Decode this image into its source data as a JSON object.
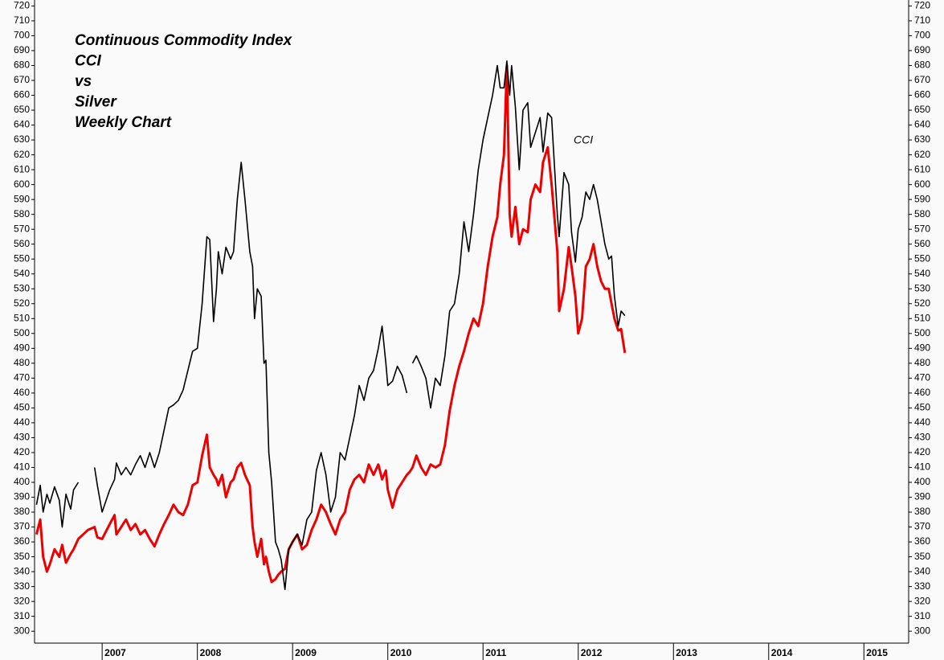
{
  "chart_data": {
    "type": "line",
    "title": [
      "Continuous Commodity Index",
      "CCI",
      "vs",
      "Silver",
      "Weekly Chart"
    ],
    "xlim": [
      2006.29,
      2015.47
    ],
    "xticks": [
      2007,
      2008,
      2009,
      2010,
      2011,
      2012,
      2013,
      2014,
      2015
    ],
    "ylim": [
      292,
      724
    ],
    "yticks": [
      300,
      310,
      320,
      330,
      340,
      350,
      360,
      370,
      380,
      390,
      400,
      410,
      420,
      430,
      440,
      450,
      460,
      470,
      480,
      490,
      500,
      510,
      520,
      530,
      540,
      550,
      560,
      570,
      580,
      590,
      600,
      610,
      620,
      630,
      640,
      650,
      660,
      670,
      680,
      690,
      700,
      710,
      720
    ],
    "x": [
      2006.31,
      2006.35,
      2006.38,
      2006.42,
      2006.45,
      2006.5,
      2006.55,
      2006.58,
      2006.62,
      2006.67,
      2006.7,
      2006.75,
      2006.85,
      2006.92,
      2006.95,
      2007.0,
      2007.08,
      2007.13,
      2007.15,
      2007.2,
      2007.25,
      2007.3,
      2007.35,
      2007.4,
      2007.45,
      2007.5,
      2007.55,
      2007.6,
      2007.65,
      2007.7,
      2007.75,
      2007.8,
      2007.85,
      2007.9,
      2007.95,
      2008.0,
      2008.05,
      2008.1,
      2008.13,
      2008.17,
      2008.2,
      2008.22,
      2008.26,
      2008.3,
      2008.35,
      2008.38,
      2008.42,
      2008.46,
      2008.5,
      2008.55,
      2008.58,
      2008.6,
      2008.63,
      2008.67,
      2008.7,
      2008.72,
      2008.75,
      2008.78,
      2008.82,
      2008.85,
      2008.88,
      2008.92,
      2008.96,
      2009.0,
      2009.05,
      2009.1,
      2009.15,
      2009.2,
      2009.25,
      2009.3,
      2009.35,
      2009.4,
      2009.45,
      2009.5,
      2009.55,
      2009.6,
      2009.65,
      2009.7,
      2009.75,
      2009.8,
      2009.85,
      2009.9,
      2009.94,
      2009.98,
      2010.0,
      2010.05,
      2010.1,
      2010.15,
      2010.2,
      2010.23,
      2010.26,
      2010.3,
      2010.35,
      2010.4,
      2010.45,
      2010.5,
      2010.55,
      2010.6,
      2010.65,
      2010.7,
      2010.75,
      2010.8,
      2010.85,
      2010.9,
      2010.95,
      2011.0,
      2011.05,
      2011.1,
      2011.15,
      2011.18,
      2011.22,
      2011.25,
      2011.28,
      2011.3,
      2011.34,
      2011.38,
      2011.42,
      2011.47,
      2011.5,
      2011.55,
      2011.6,
      2011.63,
      2011.68,
      2011.72,
      2011.78,
      2011.8,
      2011.85,
      2011.9,
      2011.93,
      2011.97,
      2012.0,
      2012.04,
      2012.08,
      2012.12,
      2012.16,
      2012.2,
      2012.24,
      2012.28,
      2012.32,
      2012.35,
      2012.38,
      2012.42,
      2012.45,
      2012.49
    ],
    "series": [
      {
        "name": "CCI",
        "color": "#000000",
        "values": [
          385,
          398,
          380,
          392,
          386,
          397,
          388,
          370,
          392,
          382,
          395,
          400,
          null,
          410,
          398,
          380,
          395,
          402,
          413,
          405,
          410,
          405,
          412,
          418,
          410,
          420,
          410,
          420,
          435,
          450,
          452,
          455,
          462,
          475,
          488,
          490,
          520,
          565,
          563,
          508,
          530,
          555,
          540,
          558,
          550,
          555,
          590,
          615,
          590,
          555,
          545,
          510,
          530,
          525,
          480,
          482,
          420,
          400,
          360,
          355,
          348,
          328,
          355,
          360,
          365,
          358,
          375,
          380,
          408,
          420,
          405,
          380,
          390,
          420,
          415,
          430,
          445,
          465,
          455,
          470,
          475,
          490,
          505,
          480,
          465,
          468,
          478,
          472,
          460,
          null,
          480,
          485,
          478,
          470,
          450,
          470,
          465,
          485,
          515,
          520,
          540,
          575,
          555,
          580,
          610,
          630,
          645,
          660,
          680,
          665,
          665,
          683,
          660,
          680,
          652,
          610,
          650,
          655,
          625,
          635,
          645,
          622,
          648,
          645,
          580,
          565,
          608,
          600,
          568,
          548,
          570,
          578,
          595,
          590,
          600,
          590,
          575,
          560,
          550,
          552,
          525,
          505,
          515,
          512
        ]
      },
      {
        "color": "#ee0000",
        "values": [
          365,
          375,
          350,
          340,
          345,
          355,
          350,
          358,
          346,
          352,
          355,
          362,
          368,
          370,
          363,
          362,
          372,
          378,
          365,
          370,
          375,
          368,
          372,
          365,
          368,
          362,
          357,
          365,
          372,
          378,
          385,
          380,
          378,
          385,
          398,
          400,
          418,
          432,
          410,
          405,
          402,
          398,
          405,
          390,
          400,
          402,
          410,
          413,
          405,
          398,
          370,
          360,
          350,
          362,
          345,
          350,
          340,
          333,
          335,
          338,
          340,
          342,
          355,
          360,
          365,
          355,
          358,
          368,
          375,
          385,
          380,
          372,
          365,
          375,
          380,
          395,
          402,
          405,
          400,
          412,
          405,
          412,
          402,
          408,
          395,
          383,
          395,
          400,
          405,
          407,
          410,
          418,
          410,
          405,
          412,
          410,
          412,
          425,
          448,
          465,
          478,
          488,
          500,
          510,
          505,
          520,
          545,
          565,
          578,
          600,
          620,
          680,
          580,
          565,
          585,
          560,
          570,
          568,
          590,
          600,
          595,
          615,
          625,
          600,
          555,
          515,
          530,
          558,
          545,
          525,
          500,
          510,
          545,
          550,
          560,
          545,
          535,
          530,
          530,
          520,
          510,
          502,
          503,
          487
        ]
      }
    ]
  }
}
